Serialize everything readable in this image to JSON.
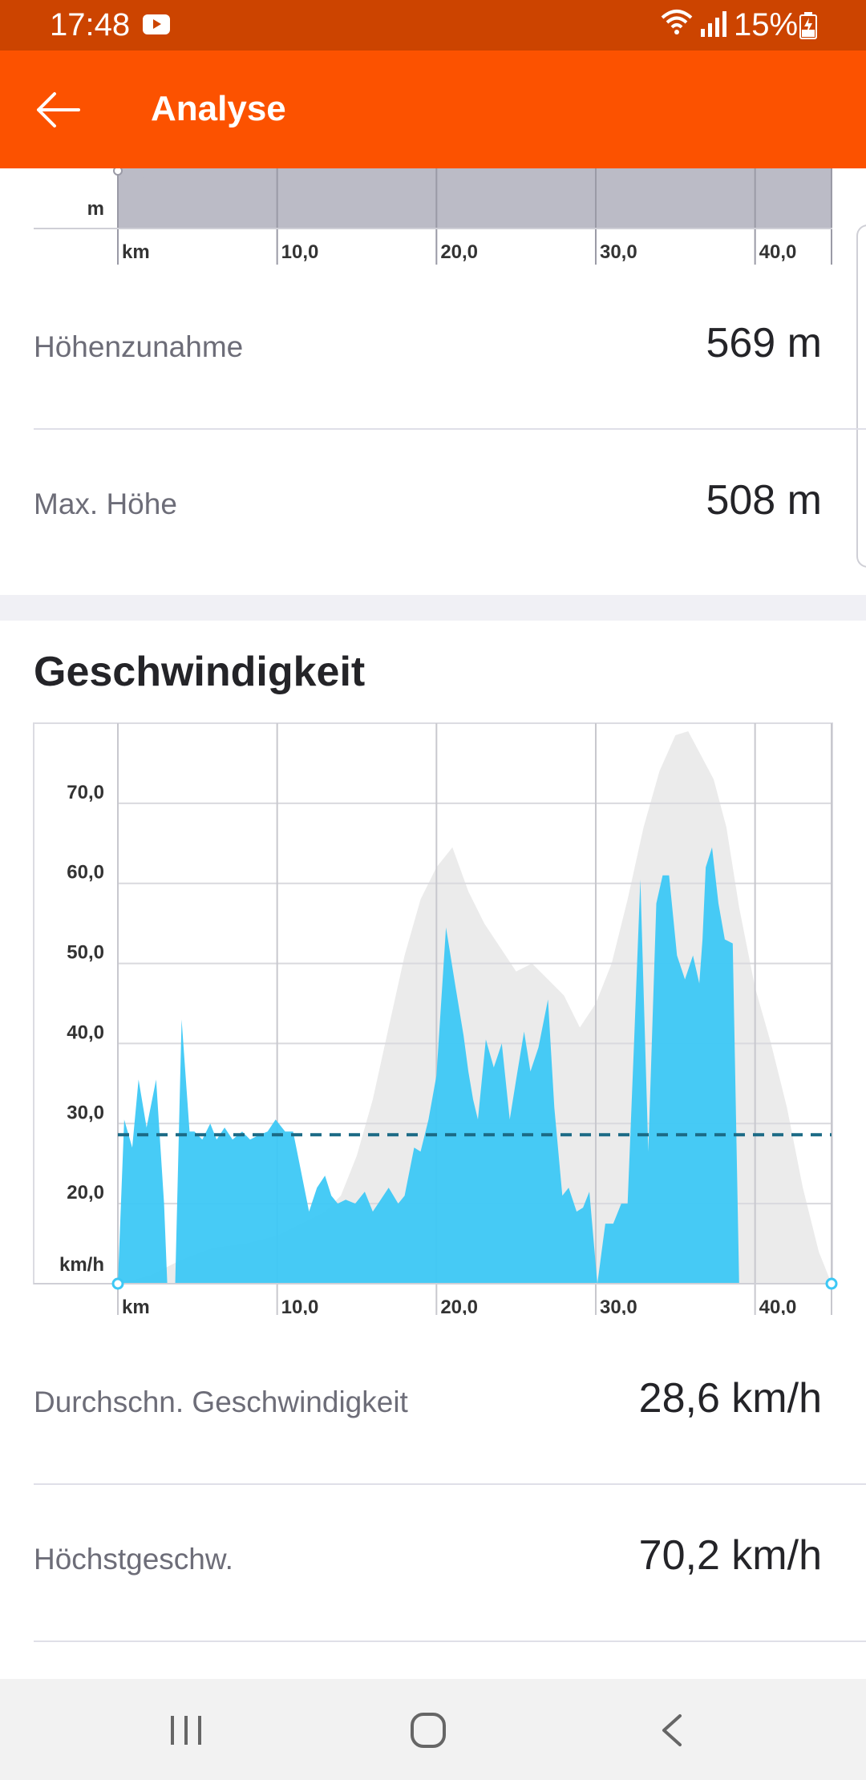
{
  "status_bar": {
    "time": "17:48",
    "battery": "15%",
    "icons": [
      "youtube-icon",
      "wifi-icon",
      "signal-icon",
      "battery-charging-icon"
    ]
  },
  "header": {
    "title": "Analyse",
    "back_icon": "arrow-left-icon"
  },
  "colors": {
    "status_bar": "#cc4400",
    "app_bar": "#fc5200",
    "speed_fill": "#3dc8f5",
    "elevation_fill": "#ebebeb",
    "average_line": "#1b6a85",
    "elevation_top_fill": "#bbbbc6"
  },
  "elevation_section": {
    "stats": [
      {
        "label": "Höhenzunahme",
        "value": "569 m"
      },
      {
        "label": "Max. Höhe",
        "value": "508 m"
      }
    ]
  },
  "chart_data": [
    {
      "type": "area",
      "title": "",
      "y_unit_label": "m",
      "x_unit_label": "km",
      "x_tick_labels": [
        "10,0",
        "20,0",
        "30,0",
        "40,0"
      ],
      "xlim": [
        0,
        44.8
      ]
    },
    {
      "type": "area",
      "title": "Geschwindigkeit",
      "y_unit_label": "km/h",
      "x_unit_label": "km",
      "y_tick_labels": [
        "20,0",
        "30,0",
        "40,0",
        "50,0",
        "60,0",
        "70,0"
      ],
      "x_tick_labels": [
        "10,0",
        "20,0",
        "30,0",
        "40,0"
      ],
      "ylim": [
        10,
        80
      ],
      "xlim": [
        0,
        44.8
      ],
      "grid": true,
      "average": 28.6,
      "series": [
        {
          "x": [
            0,
            0.4,
            0.9,
            1.3,
            1.8,
            2.4,
            2.9,
            3.1,
            3.6,
            4.0,
            4.5,
            4.8,
            5.3,
            5.8,
            6.2,
            6.7,
            7.2,
            7.8,
            8.3,
            8.8,
            9.4,
            9.9,
            10.5,
            11.0,
            11.5,
            12.0,
            12.5,
            13.0,
            13.4,
            13.8,
            14.3,
            14.9,
            15.5,
            16.0,
            16.5,
            17.0,
            17.6,
            18.0,
            18.6,
            19.0,
            19.5,
            20.0,
            20.6,
            21.2,
            21.7,
            22.0,
            22.3,
            22.6,
            23.1,
            23.6,
            24.1,
            24.6,
            25.0,
            25.5,
            25.9,
            26.4,
            27.0,
            27.4,
            27.9,
            28.3,
            28.8,
            29.2,
            29.6,
            30.1,
            30.6,
            31.1,
            31.6,
            32.0,
            32.4,
            32.8,
            33.3,
            33.8,
            34.2,
            34.6,
            35.1,
            35.6,
            36.1,
            36.5,
            36.7,
            36.9,
            37.3,
            37.7,
            38.1,
            38.6,
            39.0,
            39.4,
            39.8,
            40.3,
            40.7,
            41.1,
            41.6,
            42.0,
            42.4,
            42.8,
            43.2,
            43.8,
            44.3,
            44.7
          ],
          "y": [
            10,
            30.5,
            27,
            35.5,
            29.5,
            35.5,
            20,
            10,
            10,
            43,
            29,
            29,
            28,
            30,
            28,
            29.5,
            28,
            29,
            28,
            28.5,
            29,
            30.5,
            29,
            29,
            24,
            19,
            22,
            23.5,
            21,
            20,
            20.5,
            20,
            21.5,
            19,
            20.5,
            22,
            20,
            21,
            27,
            26.5,
            30.5,
            36,
            54.5,
            47,
            41,
            36.5,
            33,
            30.5,
            40.5,
            37,
            40,
            30.5,
            35.5,
            41.5,
            36.5,
            39.5,
            45.5,
            32,
            21,
            22,
            19,
            19.5,
            21.5,
            10,
            17.5,
            17.5,
            20,
            20,
            40,
            60.5,
            26.5,
            57.5,
            61,
            61,
            51,
            48,
            51,
            47.5,
            53,
            62,
            64.5,
            57.5,
            53,
            52.5,
            10,
            10,
            10,
            10,
            10,
            10,
            10,
            10,
            10,
            10,
            10,
            10,
            10,
            10
          ]
        }
      ]
    }
  ],
  "speed_section": {
    "title": "Geschwindigkeit",
    "stats": [
      {
        "label": "Durchschn. Geschwindigkeit",
        "value": "28,6 km/h"
      },
      {
        "label": "Höchstgeschw.",
        "value": "70,2 km/h"
      }
    ]
  },
  "nav_bar": {
    "buttons": [
      "recent-apps-icon",
      "home-icon",
      "back-icon"
    ]
  }
}
